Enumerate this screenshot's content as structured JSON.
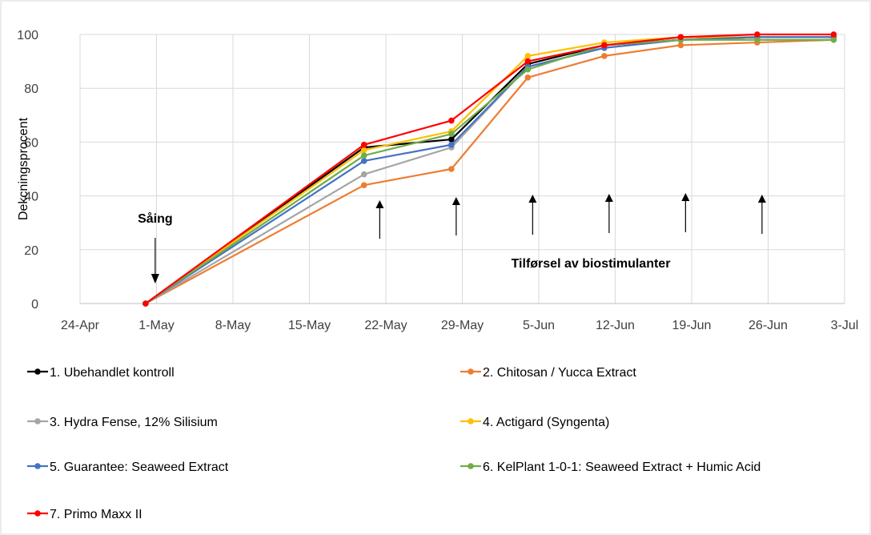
{
  "chart_data": {
    "type": "line",
    "title": "",
    "xlabel": "",
    "ylabel": "Dekcningsprocent",
    "ylim": [
      0,
      100
    ],
    "yticks": [
      0,
      20,
      40,
      60,
      80,
      100
    ],
    "xlim": [
      "2019-04-24",
      "2019-07-03"
    ],
    "xticks": [
      {
        "date": "2019-04-24",
        "label": "24-Apr"
      },
      {
        "date": "2019-05-01",
        "label": "1-May"
      },
      {
        "date": "2019-05-08",
        "label": "8-May"
      },
      {
        "date": "2019-05-15",
        "label": "15-May"
      },
      {
        "date": "2019-05-22",
        "label": "22-May"
      },
      {
        "date": "2019-05-29",
        "label": "29-May"
      },
      {
        "date": "2019-06-05",
        "label": "5-Jun"
      },
      {
        "date": "2019-06-12",
        "label": "12-Jun"
      },
      {
        "date": "2019-06-19",
        "label": "19-Jun"
      },
      {
        "date": "2019-06-26",
        "label": "26-Jun"
      },
      {
        "date": "2019-07-03",
        "label": "3-Jul"
      }
    ],
    "x": [
      "2019-04-30",
      "2019-05-20",
      "2019-05-28",
      "2019-06-04",
      "2019-06-11",
      "2019-06-18",
      "2019-06-25",
      "2019-07-02"
    ],
    "grid": true,
    "legend_position": "bottom",
    "series": [
      {
        "name": "1. Ubehandlet kontroll",
        "color": "#000000",
        "values": [
          0,
          58,
          61,
          89,
          96,
          98,
          99,
          99
        ]
      },
      {
        "name": "2.  Chitosan / Yucca Extract",
        "color": "#ED7D31",
        "values": [
          0,
          44,
          50,
          84,
          92,
          96,
          97,
          98
        ]
      },
      {
        "name": "3. Hydra Fense, 12% Silisium",
        "color": "#A5A5A5",
        "values": [
          0,
          48,
          58,
          88,
          95,
          98,
          99,
          99
        ]
      },
      {
        "name": "4. Actigard (Syngenta)",
        "color": "#FFC000",
        "values": [
          0,
          57,
          64,
          92,
          97,
          99,
          99,
          99
        ]
      },
      {
        "name": "5. Guarantee: Seaweed Extract",
        "color": "#4472C4",
        "values": [
          0,
          53,
          59,
          88,
          95,
          98,
          99,
          99
        ]
      },
      {
        "name": "6. KelPlant 1-0-1: Seaweed Extract + Humic Acid",
        "color": "#70AD47",
        "values": [
          0,
          55,
          63,
          87,
          96,
          98,
          98,
          98
        ]
      },
      {
        "name": "7. Primo Maxx II",
        "color": "#FF0000",
        "values": [
          0,
          59,
          68,
          90,
          96,
          99,
          100,
          100
        ]
      }
    ],
    "annotations": {
      "sowing_label": "Såing",
      "sowing_date": "2019-04-30",
      "application_label": "Tilførsel av biostimulanter",
      "application_dates": [
        "2019-05-21",
        "2019-05-28",
        "2019-06-04",
        "2019-06-11",
        "2019-06-18",
        "2019-06-25"
      ]
    }
  }
}
